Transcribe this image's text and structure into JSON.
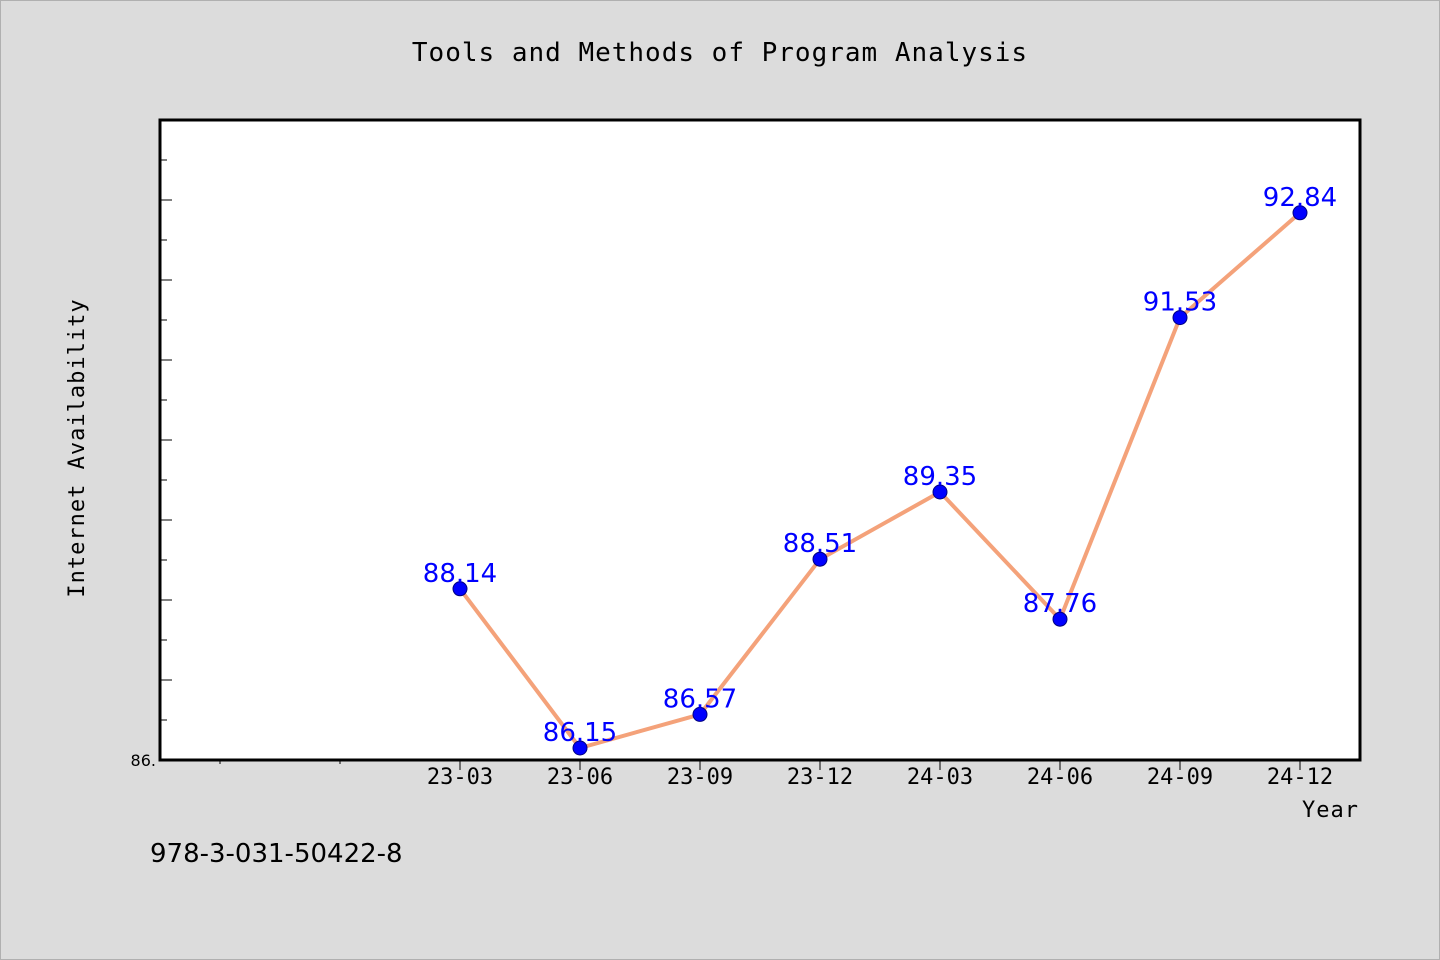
{
  "chart_data": {
    "type": "line",
    "title": "Tools and Methods of Program Analysis",
    "xlabel": "Year",
    "ylabel": "Internet Availability",
    "categories": [
      "23-03",
      "23-06",
      "23-09",
      "23-12",
      "24-03",
      "24-06",
      "24-09",
      "24-12"
    ],
    "series": [
      {
        "values": [
          88.14,
          86.15,
          86.57,
          88.51,
          89.35,
          87.76,
          91.53,
          92.84
        ],
        "line_color": "#f4a27a",
        "marker_color": "#0000ff"
      }
    ],
    "data_labels": [
      "88.14",
      "86.15",
      "86.57",
      "88.51",
      "89.35",
      "87.76",
      "91.53",
      "92.84"
    ],
    "y_tick_labels": [
      "86."
    ],
    "ylim": [
      86.0,
      94.0
    ],
    "grid": false,
    "background": "#dcdcdc",
    "plot_background": "#ffffff"
  },
  "footer": {
    "isbn": "978-3-031-50422-8"
  }
}
